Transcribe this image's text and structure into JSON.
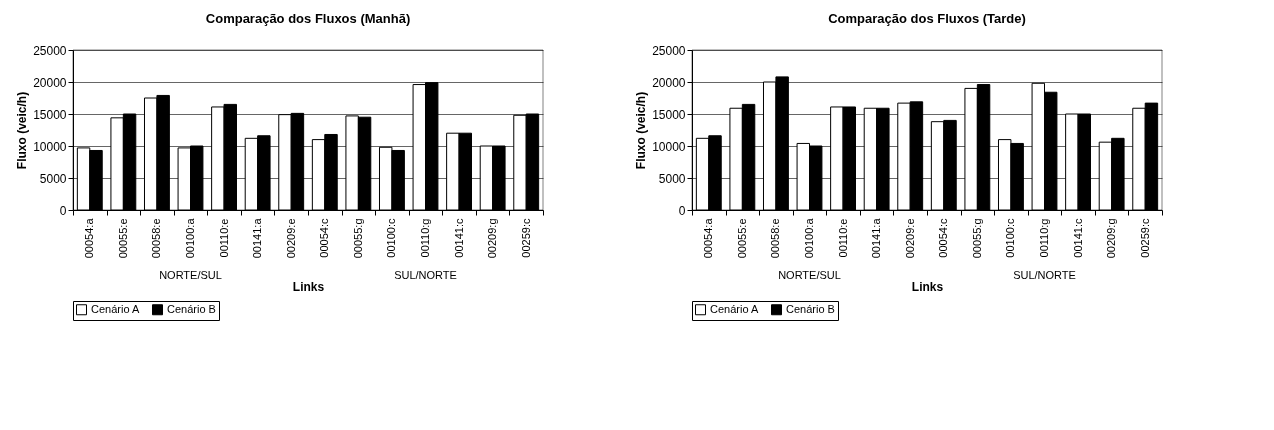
{
  "chart_data": [
    {
      "type": "bar",
      "title": "Comparação dos Fluxos (Manhã)",
      "xlabel": "Links",
      "ylabel": "Fluxo (veic/h)",
      "categories": [
        "00054:a",
        "00055:e",
        "00058:e",
        "00100:a",
        "00110:e",
        "00141:a",
        "00209:e",
        "00054:c",
        "00055:g",
        "00100:c",
        "00110:g",
        "00141:c",
        "00209:g",
        "00259:c"
      ],
      "series": [
        {
          "name": "Cenário A",
          "color": "#ffffff",
          "values": [
            9700,
            14400,
            17500,
            9700,
            16100,
            11200,
            14900,
            11000,
            14700,
            9800,
            19600,
            12000,
            10000,
            14800
          ]
        },
        {
          "name": "Cenário B",
          "color": "#000000",
          "values": [
            9300,
            15000,
            17900,
            10000,
            16500,
            11600,
            15100,
            11800,
            14500,
            9300,
            19900,
            12000,
            10000,
            15000
          ]
        }
      ],
      "annotations": [
        "NORTE/SUL",
        "SUL/NORTE"
      ],
      "ylim": [
        0,
        25000
      ],
      "yticks": [
        0,
        5000,
        10000,
        15000,
        20000,
        25000
      ],
      "grid": "y",
      "legend": "bottom"
    },
    {
      "type": "bar",
      "title": "Comparação dos Fluxos (Tarde)",
      "xlabel": "Links",
      "ylabel": "Fluxo (veic/h)",
      "categories": [
        "00054:a",
        "00055:e",
        "00058:e",
        "00100:a",
        "00110:e",
        "00141:a",
        "00209:e",
        "00054:c",
        "00055:g",
        "00100:c",
        "00110:g",
        "00141:c",
        "00209:g",
        "00259:c"
      ],
      "series": [
        {
          "name": "Cenário A",
          "color": "#ffffff",
          "values": [
            11200,
            15900,
            20000,
            10400,
            16100,
            15900,
            16700,
            13800,
            19000,
            11000,
            19800,
            15000,
            10600,
            15900
          ]
        },
        {
          "name": "Cenário B",
          "color": "#000000",
          "values": [
            11600,
            16500,
            20800,
            10000,
            16100,
            15900,
            16900,
            14000,
            19600,
            10400,
            18400,
            15000,
            11200,
            16700
          ]
        }
      ],
      "annotations": [
        "NORTE/SUL",
        "SUL/NORTE"
      ],
      "ylim": [
        0,
        25000
      ],
      "yticks": [
        0,
        5000,
        10000,
        15000,
        20000,
        25000
      ],
      "grid": "y",
      "legend": "bottom"
    }
  ]
}
